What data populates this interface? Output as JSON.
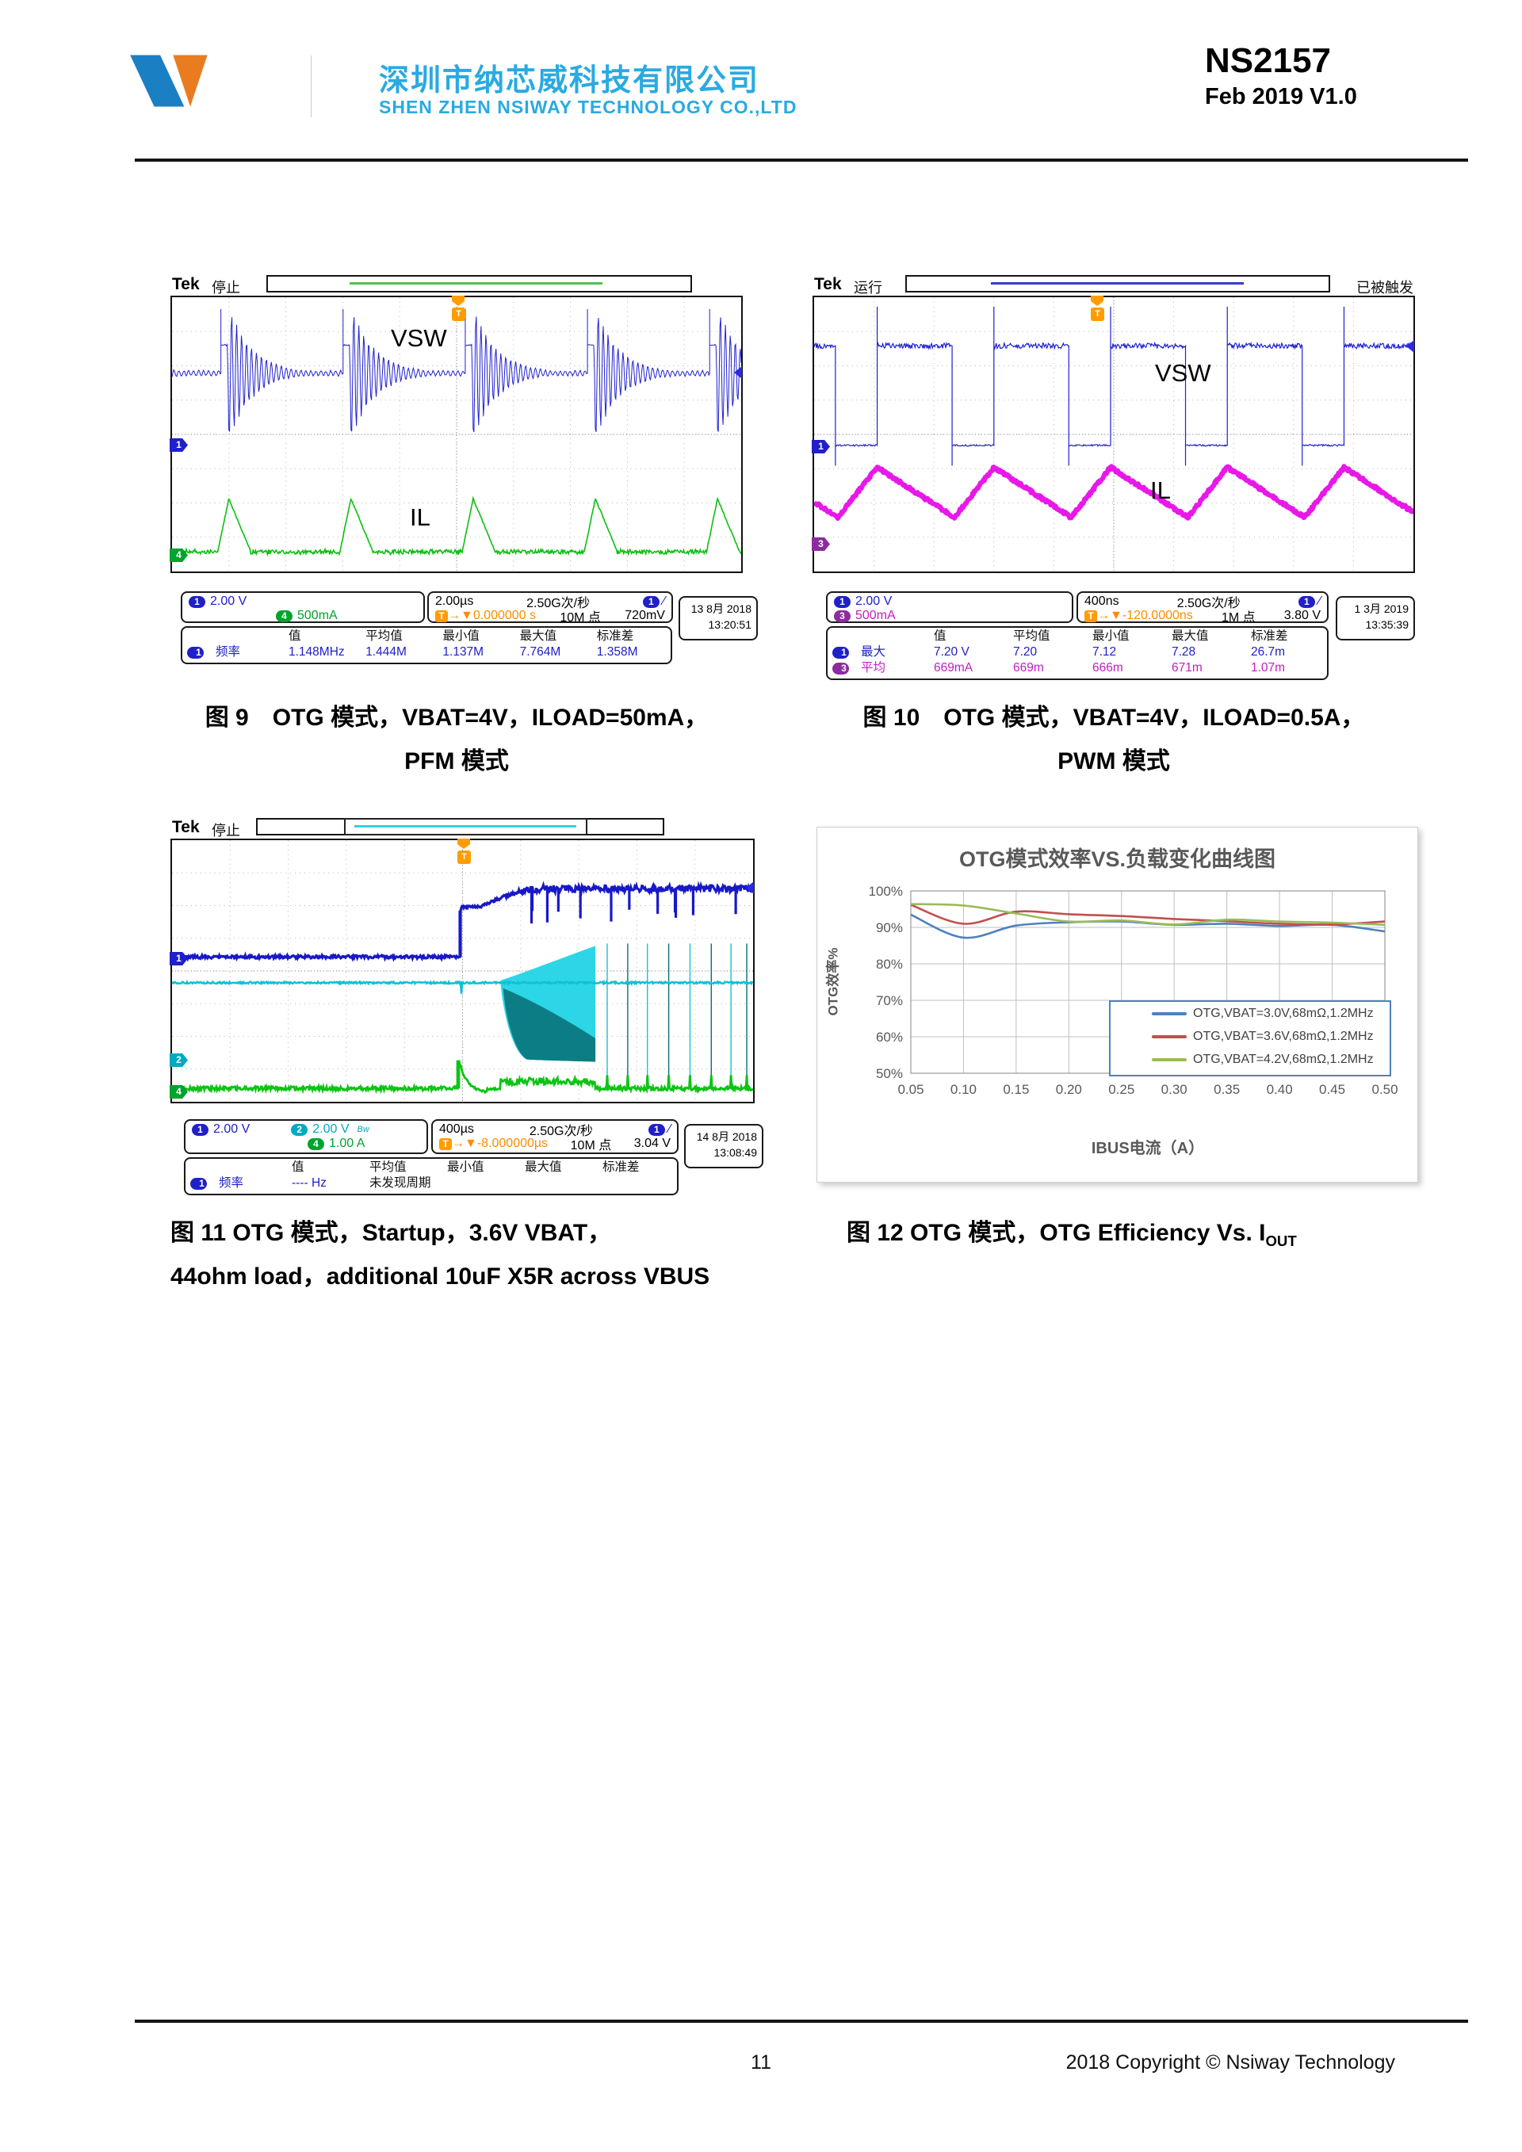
{
  "header": {
    "company_cn": "深圳市纳芯威科技有限公司",
    "company_en": "SHEN ZHEN NSIWAY  TECHNOLOGY CO.,LTD",
    "part_number": "NS2157",
    "revision": "Feb 2019 V1.0"
  },
  "colors": {
    "brand_cyan": "#29aae1",
    "logo_blue": "#1b7fc4",
    "logo_orange": "#e87c1e",
    "ch1_blue": "#2020c8",
    "ch2_cyan": "#00aac0",
    "ch3_magenta": "#c21ec2",
    "ch4_green": "#00a32e",
    "trigger_orange": "#ff9c00"
  },
  "scopes": [
    {
      "brand": "Tek",
      "status": "停止",
      "triggered": "",
      "wave_label_top": "VSW",
      "wave_label_bottom": "IL",
      "channels": [
        {
          "num": "1",
          "scale": "2.00 V"
        },
        {
          "num": "4",
          "scale": "500mA"
        }
      ],
      "timebase": "2.00µs",
      "sample_rate": "2.50G次/秒",
      "trigger_source": "1",
      "trigger_slope": "∕",
      "trigger_icon": "T",
      "trigger_pos": "→▼0.000000 s",
      "record_length": "10M 点",
      "trigger_level": "720mV",
      "date": "13 8月 2018",
      "time": "13:20:51",
      "meas_headers": [
        "值",
        "平均值",
        "最小值",
        "最大值",
        "标准差"
      ],
      "measurements": [
        {
          "ch": "1",
          "name": "频率",
          "values": [
            "1.148MHz",
            "1.444M",
            "1.137M",
            "7.764M",
            "1.358M"
          ]
        }
      ]
    },
    {
      "brand": "Tek",
      "status": "运行",
      "triggered": "已被触发",
      "wave_label_top": "VSW",
      "wave_label_bottom": "IL",
      "channels": [
        {
          "num": "1",
          "scale": "2.00 V"
        },
        {
          "num": "3",
          "scale": "500mA"
        }
      ],
      "timebase": "400ns",
      "sample_rate": "2.50G次/秒",
      "trigger_source": "1",
      "trigger_slope": "∕",
      "trigger_icon": "T",
      "trigger_pos": "→▼-120.0000ns",
      "record_length": "1M 点",
      "trigger_level": "3.80 V",
      "date": "1 3月 2019",
      "time": "13:35:39",
      "meas_headers": [
        "值",
        "平均值",
        "最小值",
        "最大值",
        "标准差"
      ],
      "measurements": [
        {
          "ch": "1",
          "name": "最大",
          "values": [
            "7.20 V",
            "7.20",
            "7.12",
            "7.28",
            "26.7m"
          ]
        },
        {
          "ch": "3",
          "name": "平均",
          "values": [
            "669mA",
            "669m",
            "666m",
            "671m",
            "1.07m"
          ]
        }
      ]
    },
    {
      "brand": "Tek",
      "status": "停止",
      "triggered": "",
      "wave_label_top": "",
      "wave_label_bottom": "",
      "channels": [
        {
          "num": "1",
          "scale": "2.00 V"
        },
        {
          "num": "2",
          "scale": "2.00 V",
          "flag": "Bw"
        },
        {
          "num": "4",
          "scale": "1.00 A"
        }
      ],
      "timebase": "400µs",
      "sample_rate": "2.50G次/秒",
      "trigger_source": "1",
      "trigger_slope": "∕",
      "trigger_icon": "T",
      "trigger_pos": "→▼-8.000000µs",
      "record_length": "10M 点",
      "trigger_level": "3.04 V",
      "date": "14 8月 2018",
      "time": "13:08:49",
      "meas_headers": [
        "值",
        "平均值",
        "最小值",
        "最大值",
        "标准差"
      ],
      "measurements": [
        {
          "ch": "1",
          "name": "频率",
          "values": [
            "---- Hz",
            "未发现周期",
            "",
            "",
            ""
          ]
        }
      ]
    }
  ],
  "captions": {
    "fig9_line1": "图 9　OTG 模式，VBAT=4V，ILOAD=50mA，",
    "fig9_line2": "PFM 模式",
    "fig10_line1": "图 10　OTG 模式，VBAT=4V，ILOAD=0.5A，",
    "fig10_line2": "PWM 模式",
    "fig11_line1": "图 11 OTG 模式，Startup，3.6V VBAT，",
    "fig11_line2": "44ohm load，additional 10uF X5R across VBUS",
    "fig12_prefix": "图 12 OTG 模式，OTG Efficiency Vs. I",
    "fig12_sub": "OUT"
  },
  "chart_data": {
    "type": "line",
    "title": "OTG模式效率VS.负载变化曲线图",
    "xlabel": "IBUS电流（A）",
    "ylabel": "OTG效率%",
    "x": [
      0.05,
      0.1,
      0.15,
      0.2,
      0.25,
      0.3,
      0.35,
      0.4,
      0.45,
      0.5
    ],
    "x_tick_labels": [
      "0.05",
      "0.10",
      "0.15",
      "0.20",
      "0.25",
      "0.30",
      "0.35",
      "0.40",
      "0.45",
      "0.50"
    ],
    "y_ticks": [
      "100%",
      "90%",
      "80%",
      "70%",
      "60%",
      "50%"
    ],
    "ylim": [
      50,
      100
    ],
    "grid": true,
    "legend_position": "lower right",
    "series": [
      {
        "name": "OTG,VBAT=3.0V,68mΩ,1.2MHz",
        "color": "#4f81bd",
        "values": [
          93.5,
          87.2,
          90.5,
          91.4,
          91.6,
          90.7,
          91.0,
          90.4,
          90.7,
          88.9
        ]
      },
      {
        "name": "OTG,VBAT=3.6V,68mΩ,1.2MHz",
        "color": "#c0504d",
        "values": [
          96.2,
          91.0,
          94.3,
          93.6,
          93.1,
          92.3,
          91.7,
          91.0,
          90.8,
          91.6
        ]
      },
      {
        "name": "OTG,VBAT=4.2V,68mΩ,1.2MHz",
        "color": "#9bbb59",
        "values": [
          96.4,
          96.0,
          93.8,
          91.6,
          91.9,
          90.8,
          92.1,
          91.6,
          91.3,
          90.7
        ]
      }
    ]
  },
  "footer": {
    "page": "11",
    "copyright": "2018 Copyright © Nsiway Technology"
  }
}
